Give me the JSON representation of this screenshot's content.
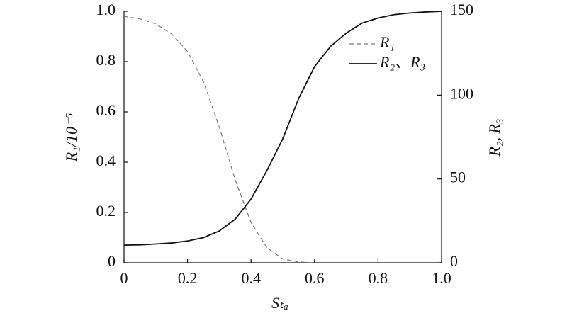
{
  "chart_data": {
    "type": "line",
    "x_label": "Sₜₐ",
    "y_label": "R₁/10⁻⁵",
    "y2_label": "R₂, R₃",
    "x": [
      0,
      0.05,
      0.1,
      0.15,
      0.2,
      0.25,
      0.3,
      0.35,
      0.4,
      0.45,
      0.5,
      0.55,
      0.6,
      0.65,
      0.7,
      0.75,
      0.8,
      0.85,
      0.9,
      0.95,
      1.0
    ],
    "series": [
      {
        "name": "R₁",
        "color": "#777777",
        "dash": true,
        "values": [
          0.98,
          0.97,
          0.95,
          0.91,
          0.84,
          0.72,
          0.54,
          0.33,
          0.16,
          0.06,
          0.015,
          0.003,
          0,
          null,
          null,
          null,
          null,
          null,
          null,
          null,
          null
        ]
      },
      {
        "name": "R₂、R₃",
        "color": "#111111",
        "dash": false,
        "axis": "y2",
        "values": [
          10.5,
          10.7,
          11.2,
          11.8,
          13,
          15,
          19,
          26,
          38,
          55,
          74,
          98,
          117,
          129,
          137,
          143,
          146,
          148,
          149,
          149.6,
          150
        ]
      }
    ],
    "xlim": [
      0,
      1.0
    ],
    "xticks": [
      0,
      0.2,
      0.4,
      0.6,
      0.8,
      {
        "value": 1,
        "label": "1.0"
      }
    ],
    "ylim": [
      0,
      1.0
    ],
    "yticks": [
      0,
      0.2,
      0.4,
      0.6,
      0.8,
      {
        "value": 1,
        "label": "1.0"
      }
    ],
    "y2lim": [
      0,
      150
    ],
    "y2ticks": [
      0,
      50,
      100,
      150
    ],
    "legend": "upper-right"
  }
}
